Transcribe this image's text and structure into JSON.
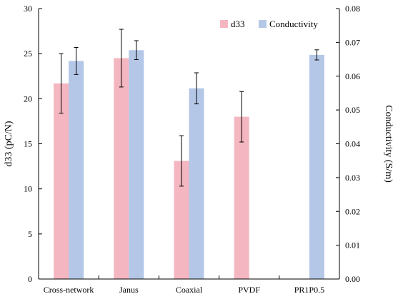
{
  "chart_data": {
    "type": "bar",
    "categories": [
      "Cross-network",
      "Janus",
      "Coaxial",
      "PVDF",
      "PR1P0.5"
    ],
    "series": [
      {
        "name": "d33",
        "axis": "left",
        "color": "#f4b6c0",
        "values": [
          21.7,
          24.5,
          13.1,
          18.0,
          null
        ],
        "errors": [
          3.3,
          3.2,
          2.8,
          2.8,
          null
        ]
      },
      {
        "name": "Conductivity",
        "axis": "right",
        "color": "#b4c7e7",
        "values": [
          0.0645,
          0.0677,
          0.0564,
          null,
          0.0663
        ],
        "errors": [
          0.004,
          0.0028,
          0.0046,
          null,
          0.0015
        ]
      }
    ],
    "ylabel": "d33 (pC/N)",
    "ylim": [
      0,
      30
    ],
    "yticks": [
      0,
      5,
      10,
      15,
      20,
      25,
      30
    ],
    "y2label": "Conductivity (S/m)",
    "y2lim": [
      0,
      0.08
    ],
    "y2ticks": [
      "0.00",
      "0.01",
      "0.02",
      "0.03",
      "0.04",
      "0.05",
      "0.06",
      "0.07",
      "0.08"
    ],
    "legend_position": "top-right",
    "grid": false
  }
}
